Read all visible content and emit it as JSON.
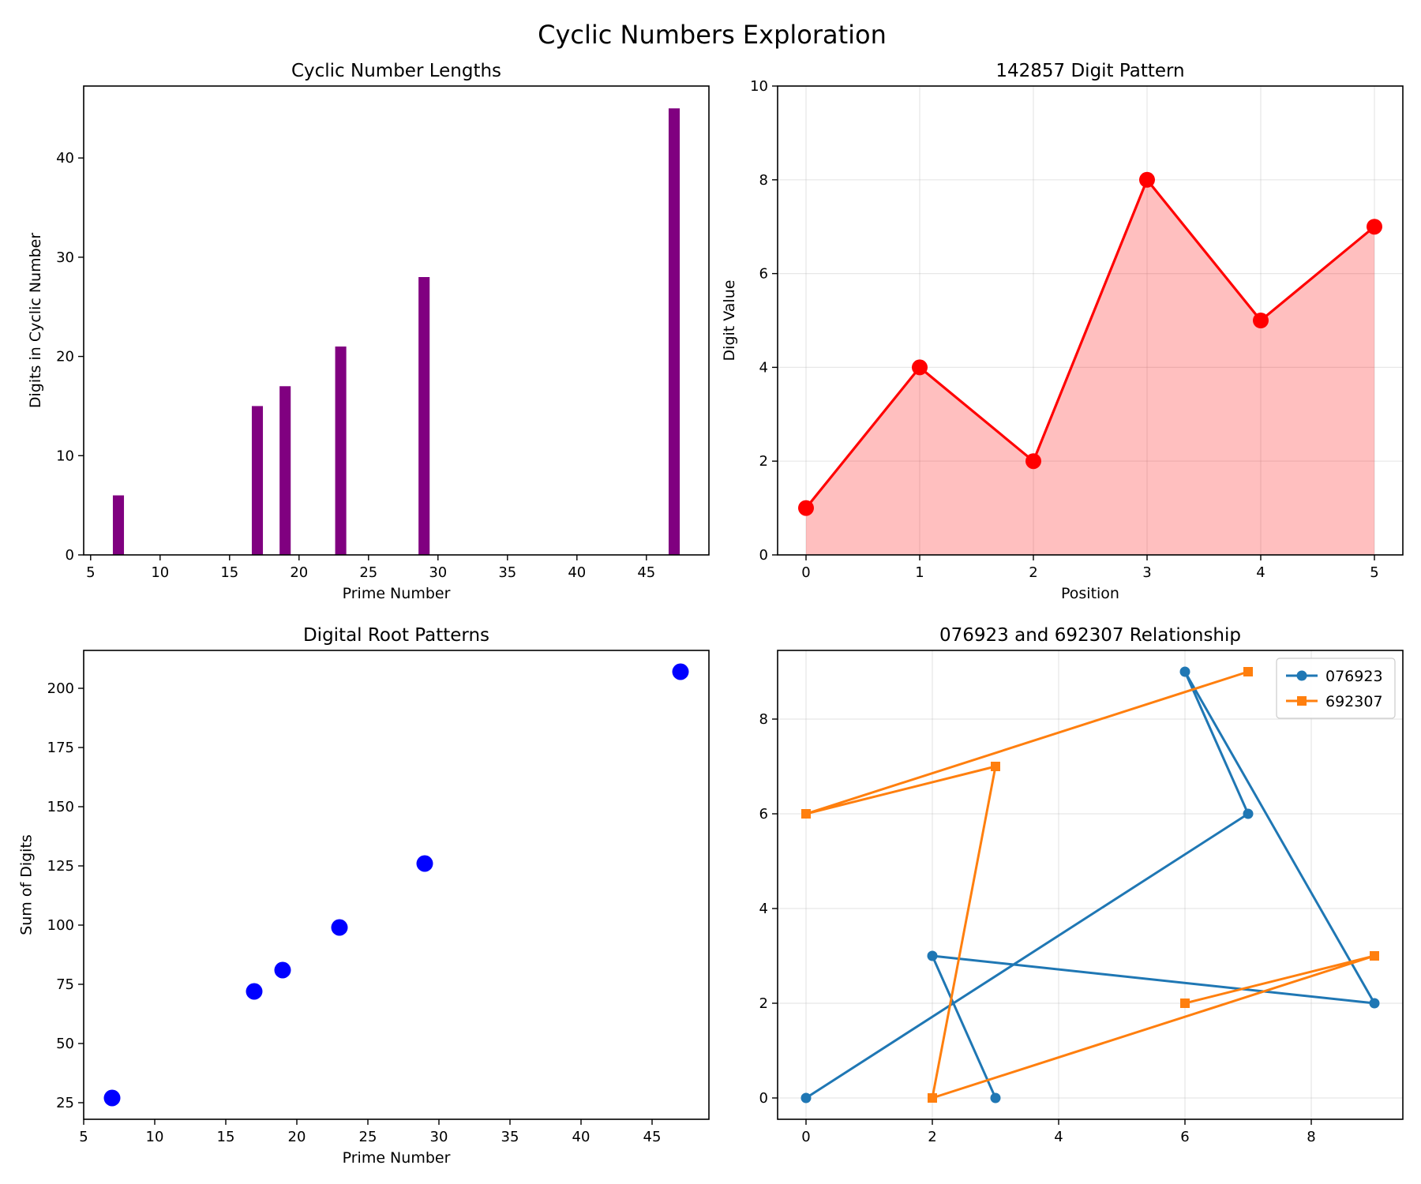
{
  "figure": {
    "title": "Cyclic Numbers Exploration"
  },
  "chart_data": [
    {
      "id": "lengths",
      "type": "bar",
      "title": "Cyclic Number Lengths",
      "xlabel": "Prime Number",
      "ylabel": "Digits in Cyclic Number",
      "x": [
        7,
        17,
        19,
        23,
        29,
        47
      ],
      "values": [
        6,
        15,
        17,
        21,
        28,
        45
      ],
      "bar_width": 0.8,
      "xlim": [
        4.5,
        49.5
      ],
      "ylim": [
        0,
        47.25
      ],
      "xticks": [
        5,
        10,
        15,
        20,
        25,
        30,
        35,
        40,
        45
      ],
      "yticks": [
        0,
        10,
        20,
        30,
        40
      ],
      "color": "#800080",
      "grid": false
    },
    {
      "id": "digits142857",
      "type": "area",
      "title": "142857 Digit Pattern",
      "xlabel": "Position",
      "ylabel": "Digit Value",
      "x": [
        0,
        1,
        2,
        3,
        4,
        5
      ],
      "y": [
        1,
        4,
        2,
        8,
        5,
        7
      ],
      "xlim": [
        -0.25,
        5.25
      ],
      "ylim": [
        0,
        10
      ],
      "xticks": [
        0,
        1,
        2,
        3,
        4,
        5
      ],
      "yticks": [
        0,
        2,
        4,
        6,
        8,
        10
      ],
      "line_color": "#ff0000",
      "fill_color": "#ff0000",
      "fill_opacity": 0.25,
      "grid": true
    },
    {
      "id": "digitalroot",
      "type": "scatter",
      "title": "Digital Root Patterns",
      "xlabel": "Prime Number",
      "ylabel": "Sum of Digits",
      "x": [
        7,
        17,
        19,
        23,
        29,
        47
      ],
      "y": [
        27,
        72,
        81,
        99,
        126,
        207
      ],
      "xlim": [
        5,
        49
      ],
      "ylim": [
        18,
        216
      ],
      "xticks": [
        5,
        10,
        15,
        20,
        25,
        30,
        35,
        40,
        45
      ],
      "yticks": [
        25,
        50,
        75,
        100,
        125,
        150,
        175,
        200
      ],
      "color": "#0000ff",
      "grid": false
    },
    {
      "id": "relationship",
      "type": "line",
      "title": "076923 and 692307 Relationship",
      "xlabel": "",
      "ylabel": "",
      "xlim": [
        -0.45,
        9.45
      ],
      "ylim": [
        -0.45,
        9.45
      ],
      "xticks": [
        0,
        2,
        4,
        6,
        8
      ],
      "yticks": [
        0,
        2,
        4,
        6,
        8
      ],
      "grid": true,
      "legend_position": "top-right",
      "series": [
        {
          "name": "076923",
          "x": [
            0,
            7,
            6,
            9,
            2,
            3
          ],
          "y": [
            0,
            6,
            9,
            2,
            3,
            0
          ],
          "color": "#1f77b4",
          "marker": "circle"
        },
        {
          "name": "692307",
          "x": [
            6,
            9,
            2,
            3,
            0,
            7
          ],
          "y": [
            2,
            3,
            0,
            7,
            6,
            9
          ],
          "color": "#ff7f0e",
          "marker": "square"
        }
      ]
    }
  ]
}
